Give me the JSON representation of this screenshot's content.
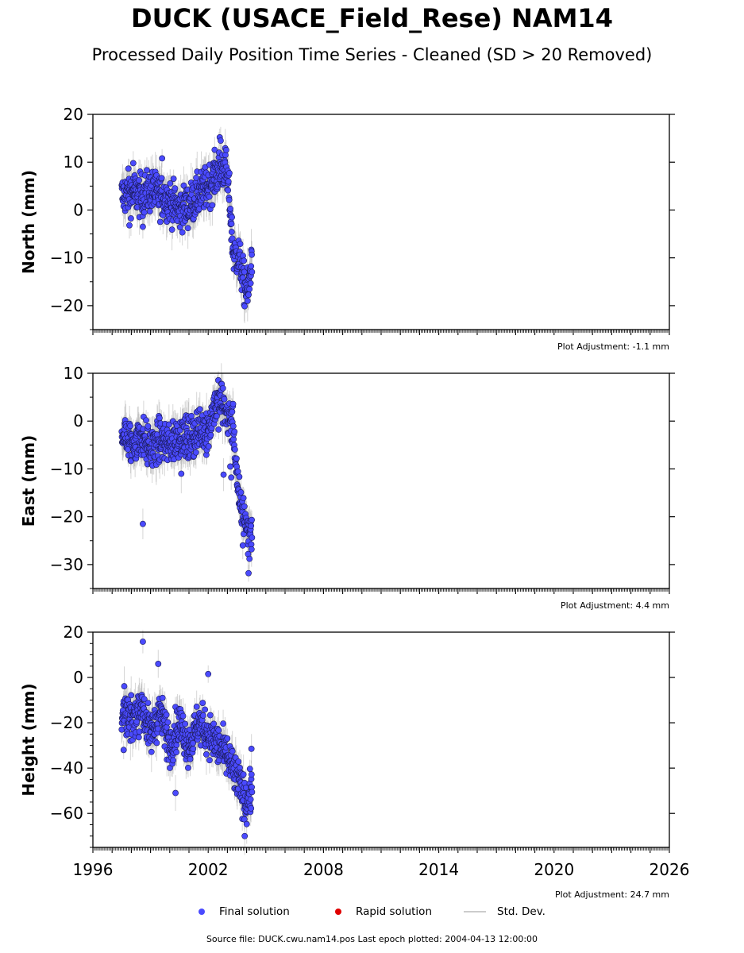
{
  "title": "DUCK (USACE_Field_Rese) NAM14",
  "subtitle": "Processed Daily Position Time Series - Cleaned (SD > 20 Removed)",
  "source_text": "Source file: DUCK.cwu.nam14.pos  Last epoch plotted: 2004-04-13 12:00:00",
  "legend": {
    "final": "Final solution",
    "rapid": "Rapid solution",
    "std": "Std. Dev."
  },
  "colors": {
    "final": "#4a4aff",
    "rapid": "#e00000",
    "std": "#b4b4b4"
  },
  "chart_data": [
    {
      "type": "scatter",
      "ylabel": "North (mm)",
      "adjustment": "Plot Adjustment: -1.1 mm",
      "xlim": [
        1996,
        2026
      ],
      "ylim": [
        -25,
        20
      ],
      "yticks": [
        -20,
        -10,
        0,
        10,
        20
      ],
      "xticks": [
        1996,
        2002,
        2008,
        2014,
        2020,
        2026
      ],
      "show_xtick_labels": false,
      "trend": [
        [
          1997.5,
          3
        ],
        [
          1998.0,
          4
        ],
        [
          1998.5,
          3
        ],
        [
          1999.0,
          4
        ],
        [
          1999.5,
          3
        ],
        [
          2000.0,
          2
        ],
        [
          2000.5,
          0
        ],
        [
          2001.0,
          1
        ],
        [
          2001.5,
          3
        ],
        [
          2002.0,
          5
        ],
        [
          2002.5,
          8
        ],
        [
          2002.9,
          9
        ],
        [
          2003.1,
          3
        ],
        [
          2003.3,
          -9
        ],
        [
          2003.6,
          -10
        ],
        [
          2003.9,
          -16
        ],
        [
          2004.1,
          -17
        ],
        [
          2004.28,
          -9
        ]
      ],
      "outliers": [
        [
          1998.1,
          9.8
        ],
        [
          1999.6,
          10.8
        ],
        [
          2002.6,
          15.2
        ],
        [
          2002.65,
          14.5
        ],
        [
          1998.6,
          -3.5
        ],
        [
          1997.9,
          -3.2
        ],
        [
          2004.05,
          -19
        ]
      ]
    },
    {
      "type": "scatter",
      "ylabel": "East (mm)",
      "adjustment": "Plot Adjustment: 4.4 mm",
      "xlim": [
        1996,
        2026
      ],
      "ylim": [
        -35,
        10
      ],
      "yticks": [
        -30,
        -20,
        -10,
        0,
        10
      ],
      "xticks": [
        1996,
        2002,
        2008,
        2014,
        2020,
        2026
      ],
      "show_xtick_labels": false,
      "trend": [
        [
          1997.5,
          -2
        ],
        [
          1998.0,
          -5
        ],
        [
          1998.5,
          -3
        ],
        [
          1999.0,
          -6
        ],
        [
          1999.5,
          -4
        ],
        [
          2000.0,
          -5
        ],
        [
          2000.5,
          -3
        ],
        [
          2001.0,
          -4
        ],
        [
          2001.5,
          -2
        ],
        [
          2002.0,
          -2
        ],
        [
          2002.3,
          3
        ],
        [
          2002.7,
          4
        ],
        [
          2003.0,
          1
        ],
        [
          2003.3,
          -1
        ],
        [
          2003.6,
          -17
        ],
        [
          2003.9,
          -20
        ],
        [
          2004.1,
          -24
        ],
        [
          2004.28,
          -22
        ]
      ],
      "outliers": [
        [
          1998.6,
          -21.5
        ],
        [
          2000.6,
          -11
        ],
        [
          2002.8,
          -11.2
        ],
        [
          2003.2,
          -11.8
        ],
        [
          2003.15,
          -9.5
        ],
        [
          2004.1,
          -31.8
        ],
        [
          2003.8,
          -26
        ]
      ]
    },
    {
      "type": "scatter",
      "ylabel": "Height (mm)",
      "adjustment": "Plot Adjustment: 24.7 mm",
      "xlim": [
        1996,
        2026
      ],
      "ylim": [
        -75,
        20
      ],
      "yticks": [
        -60,
        -40,
        -20,
        0,
        20
      ],
      "xticks": [
        1996,
        2002,
        2008,
        2014,
        2020,
        2026
      ],
      "show_xtick_labels": true,
      "trend": [
        [
          1997.5,
          -15
        ],
        [
          1998.0,
          -20
        ],
        [
          1998.5,
          -12
        ],
        [
          1999.0,
          -25
        ],
        [
          1999.5,
          -15
        ],
        [
          2000.0,
          -30
        ],
        [
          2000.5,
          -20
        ],
        [
          2001.0,
          -30
        ],
        [
          2001.5,
          -20
        ],
        [
          2002.0,
          -25
        ],
        [
          2002.5,
          -30
        ],
        [
          2003.0,
          -35
        ],
        [
          2003.5,
          -45
        ],
        [
          2004.0,
          -55
        ],
        [
          2004.28,
          -50
        ]
      ],
      "outliers": [
        [
          1998.6,
          15.8
        ],
        [
          1999.4,
          6
        ],
        [
          2002.0,
          1.5
        ],
        [
          2000.3,
          -51
        ],
        [
          2003.9,
          -70
        ],
        [
          2004.25,
          -31.5
        ],
        [
          1997.6,
          -32
        ]
      ]
    }
  ]
}
